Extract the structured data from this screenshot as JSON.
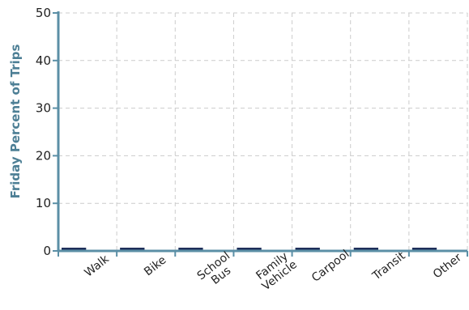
{
  "chart_data": {
    "type": "bar",
    "title": "",
    "xlabel": "",
    "ylabel": "Friday Percent of Trips",
    "categories": [
      "Walk",
      "Bike",
      "School Bus",
      "Family Vehicle",
      "Carpool",
      "Transit",
      "Other"
    ],
    "series": [
      {
        "values": [
          0,
          0,
          0,
          0,
          0,
          0,
          0
        ]
      }
    ],
    "ylim": [
      0,
      50
    ],
    "yticks": [
      0,
      10,
      20,
      30,
      40,
      50
    ],
    "grid": true,
    "legend": "none",
    "colors": {
      "axis": "#5b8fa6",
      "bar": "#1f2f5a",
      "grid": "#cccccc",
      "ylabel": "#4d7f95"
    }
  }
}
